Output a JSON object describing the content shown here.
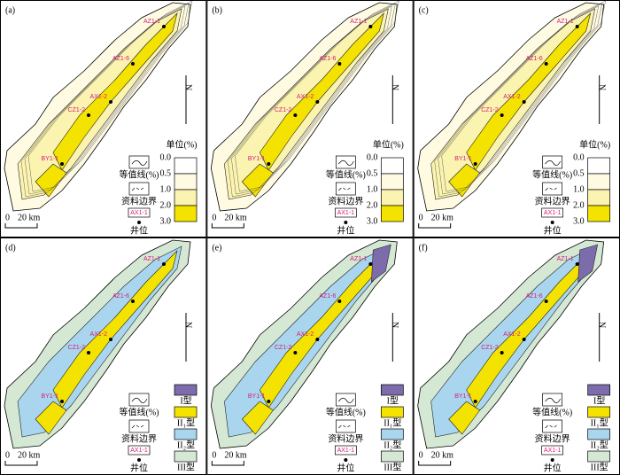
{
  "panels": [
    {
      "label": "(a)",
      "wells": [
        "AZ1-1",
        "AZ1-6",
        "AX1-2",
        "CZ1-2",
        "BY1-1"
      ]
    },
    {
      "label": "(b)",
      "wells": [
        "AZ1-1",
        "AZ1-6",
        "AX1-2",
        "CZ1-2",
        "BY1-1"
      ]
    },
    {
      "label": "(c)",
      "wells": [
        "AZ1-1",
        "AZ1-6",
        "AX1-2",
        "CZ1-2",
        "BY1-1"
      ]
    },
    {
      "label": "(d)",
      "wells": [
        "AZ1-1",
        "AZ1-6",
        "AX1-2",
        "CZ1-2",
        "BY1-1"
      ]
    },
    {
      "label": "(e)",
      "wells": [
        "AZ1-1",
        "AZ1-6",
        "AX1-2",
        "CZ1-2",
        "BY1-1"
      ]
    },
    {
      "label": "(f)",
      "wells": [
        "AZ1-1",
        "AZ1-6",
        "AX1-2",
        "CZ1-2",
        "BY1-1"
      ]
    }
  ],
  "legend_top": {
    "title": "单位(%)",
    "levels": [
      "0.0",
      "0.5",
      "1.0",
      "2.0",
      "3.0"
    ]
  },
  "legend_bottom": {
    "types": [
      "I型",
      "II₁型",
      "II₂型",
      "III型"
    ]
  },
  "common": {
    "contour": "等值线(%)",
    "boundary": "资料边界",
    "well_sample": "AX1-1",
    "well": "井位"
  },
  "scale": {
    "zero": "0",
    "length": "20 km"
  },
  "north": "N"
}
